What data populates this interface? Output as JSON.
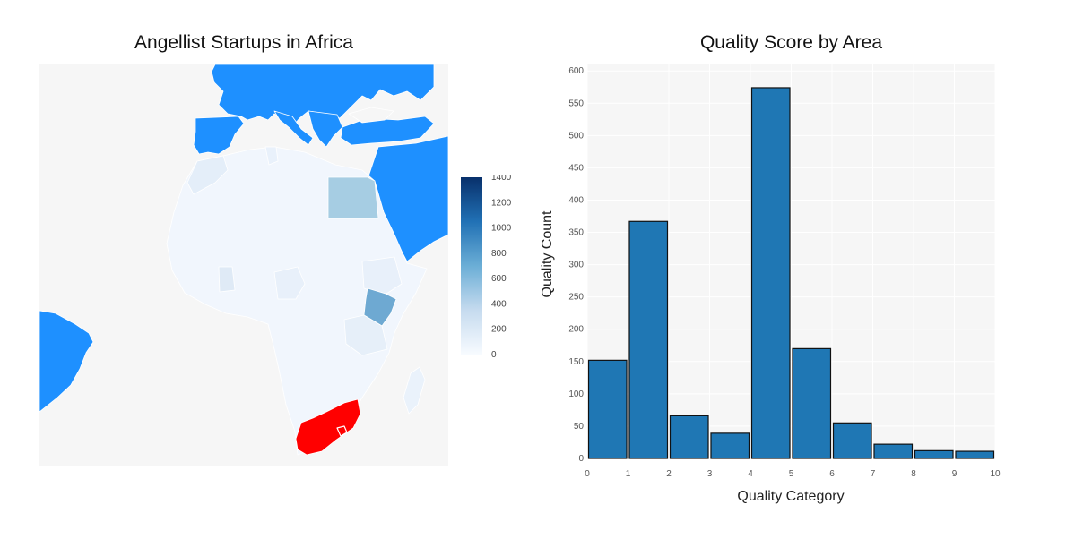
{
  "chart_data": [
    {
      "type": "choropleth",
      "title": "Angellist Startups in Africa",
      "colorbar": {
        "range": [
          0,
          1400
        ],
        "ticks": [
          0,
          200,
          400,
          600,
          800,
          1000,
          1200,
          1400
        ],
        "colorscale": [
          "#f7fbff",
          "#c6dbef",
          "#6baed6",
          "#2171b5",
          "#08306b"
        ]
      },
      "colors": {
        "ocean": "#f6f6f6",
        "non_africa": "#1e90ff",
        "south_africa": "#ff0000",
        "border": "#ffffff"
      },
      "regions": [
        {
          "name": "South Africa",
          "value": 1400,
          "color": "#ff0000"
        },
        {
          "name": "Kenya",
          "value": 550
        },
        {
          "name": "Egypt",
          "value": 350
        },
        {
          "name": "Nigeria",
          "value": 80
        },
        {
          "name": "Ghana",
          "value": 100
        },
        {
          "name": "Morocco",
          "value": 60
        },
        {
          "name": "Tunisia",
          "value": 40
        }
      ]
    },
    {
      "type": "bar",
      "title": "Quality Score by Area",
      "xlabel": "Quality Category",
      "ylabel": "Quality Count",
      "xlim": [
        0,
        10
      ],
      "ylim": [
        0,
        610
      ],
      "xticks": [
        0,
        1,
        2,
        3,
        4,
        5,
        6,
        7,
        8,
        9,
        10
      ],
      "yticks": [
        0,
        50,
        100,
        150,
        200,
        250,
        300,
        350,
        400,
        450,
        500,
        550,
        600
      ],
      "bins": [
        [
          0,
          1
        ],
        [
          1,
          2
        ],
        [
          2,
          3
        ],
        [
          3,
          4
        ],
        [
          4,
          5
        ],
        [
          5,
          6
        ],
        [
          6,
          7
        ],
        [
          7,
          8
        ],
        [
          8,
          9
        ],
        [
          9,
          10
        ]
      ],
      "values": [
        152,
        367,
        66,
        39,
        574,
        170,
        55,
        22,
        12,
        11
      ],
      "bar_color": "#1f77b4",
      "grid": true
    }
  ]
}
